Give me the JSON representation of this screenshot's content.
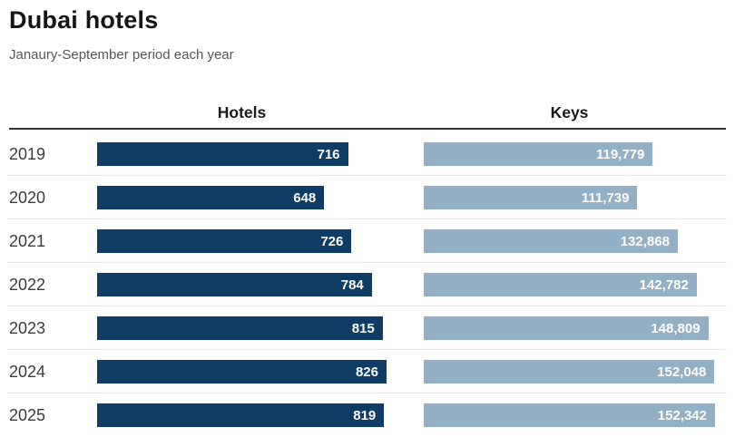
{
  "header": {
    "title": "Dubai hotels",
    "subtitle": "Janaury-September period each year"
  },
  "columns": {
    "hotels": "Hotels",
    "keys": "Keys"
  },
  "colors": {
    "hotels_bar": "#0e3c64",
    "keys_bar": "#92afc5",
    "header_rule": "#333333",
    "row_divider": "#e9e9e9",
    "value_text": "#ffffff"
  },
  "chart_data": {
    "type": "bar",
    "orientation": "horizontal",
    "title": "Dubai hotels",
    "subtitle": "Janaury-September period each year",
    "categories": [
      "2019",
      "2020",
      "2021",
      "2022",
      "2023",
      "2024",
      "2025"
    ],
    "series": [
      {
        "name": "Hotels",
        "values": [
          716,
          648,
          726,
          784,
          815,
          826,
          819
        ],
        "labels": [
          "716",
          "648",
          "726",
          "784",
          "815",
          "826",
          "819"
        ],
        "color": "#0e3c64",
        "xlim": [
          0,
          826
        ]
      },
      {
        "name": "Keys",
        "values": [
          119779,
          111739,
          132868,
          142782,
          148809,
          152048,
          152342
        ],
        "labels": [
          "119,779",
          "111,739",
          "132,868",
          "142,782",
          "148,809",
          "152,048",
          "152,342"
        ],
        "color": "#92afc5",
        "xlim": [
          0,
          152342
        ]
      }
    ],
    "value_labels": "inside-end",
    "grid": false,
    "legend": false
  }
}
